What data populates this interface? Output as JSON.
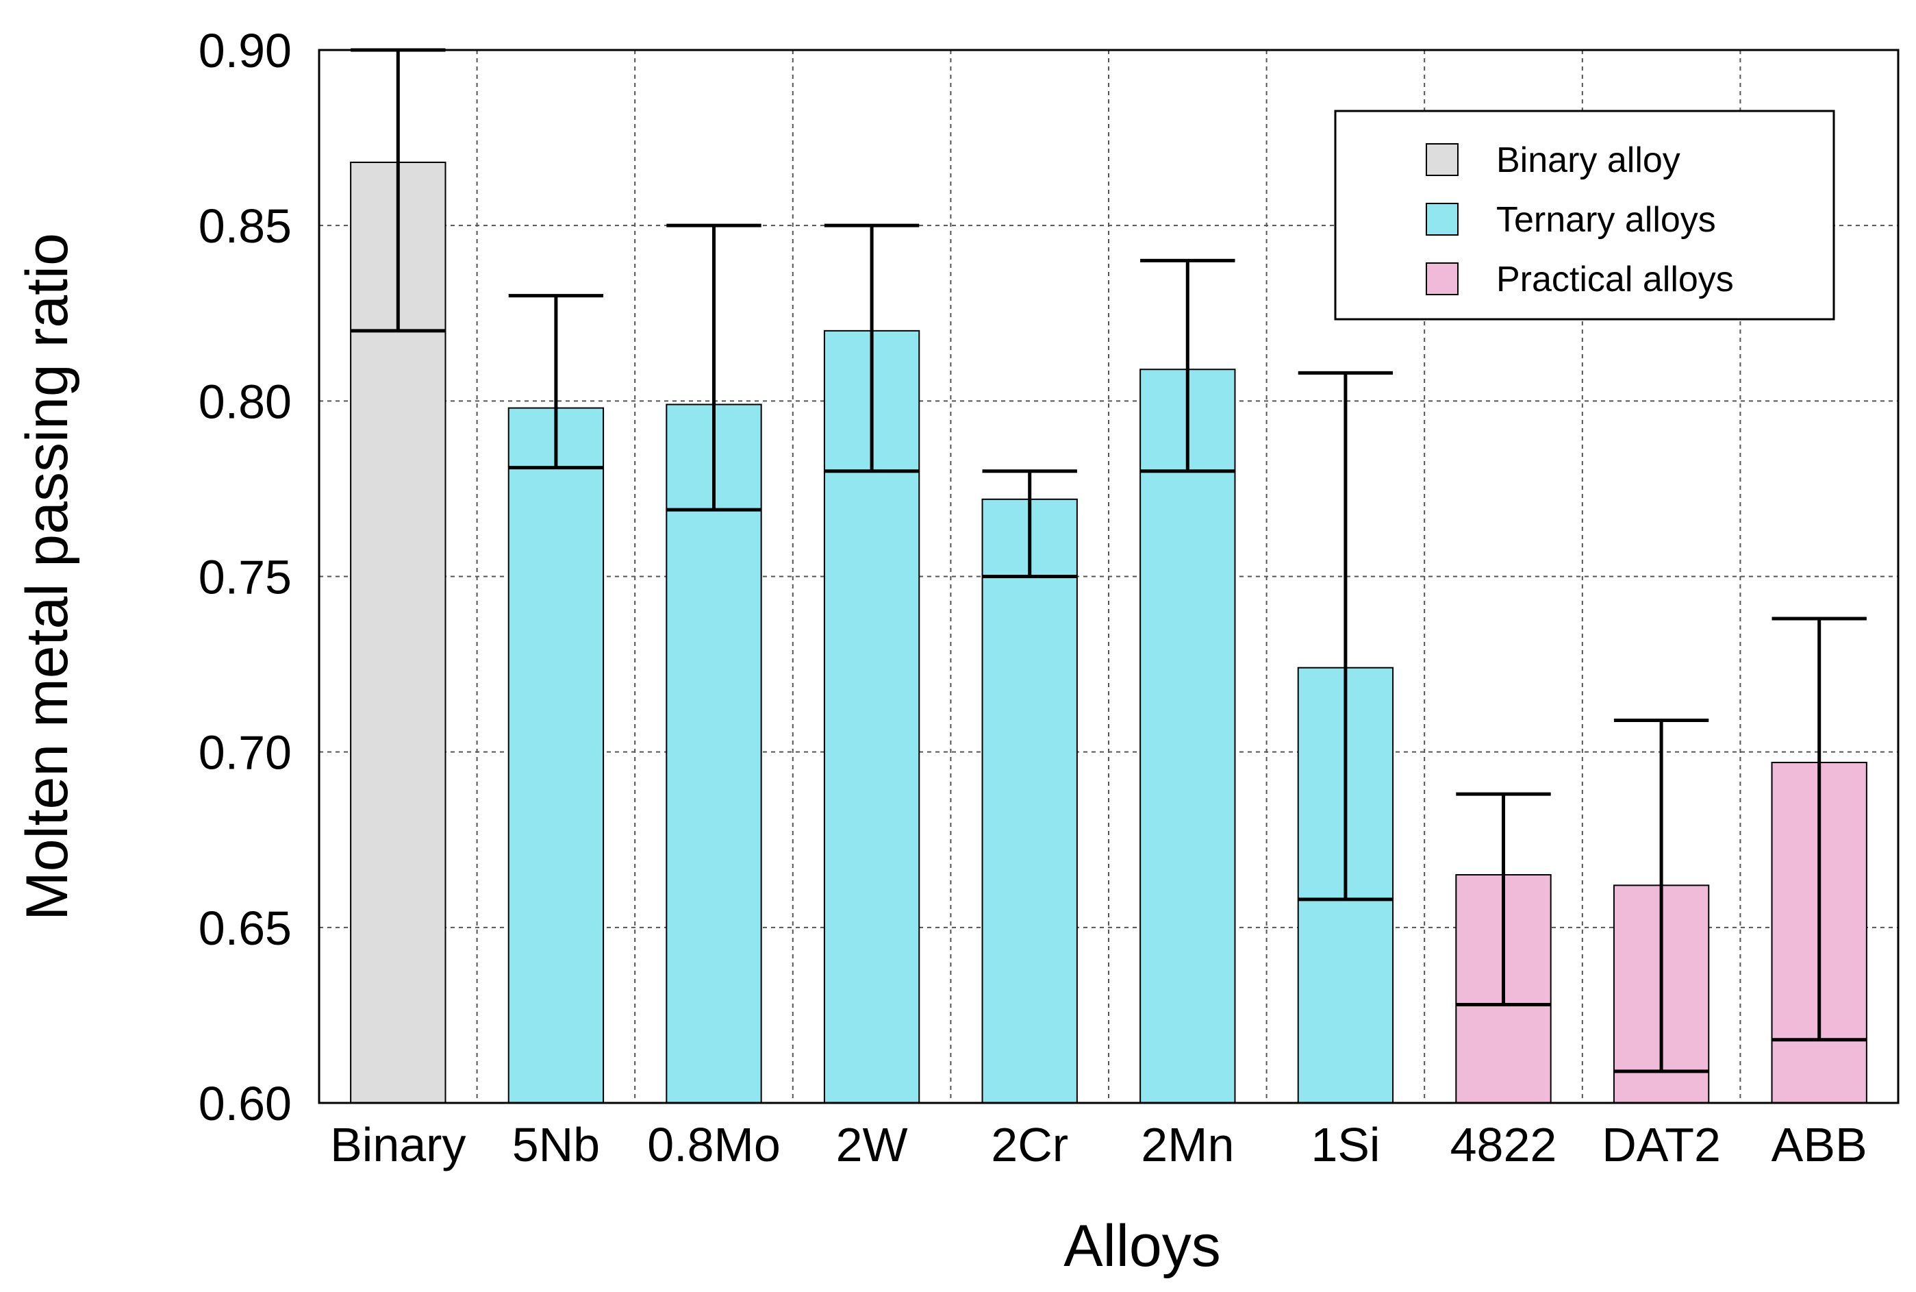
{
  "chart_data": {
    "type": "bar",
    "title": "",
    "xlabel": "Alloys",
    "ylabel": "Molten metal passing ratio",
    "ylim": [
      0.6,
      0.9
    ],
    "yticks": [
      "0.60",
      "0.65",
      "0.70",
      "0.75",
      "0.80",
      "0.85",
      "0.90"
    ],
    "grid": true,
    "legend_position": "top-right",
    "groups": [
      {
        "name": "Binary alloy",
        "color": "#dcdddc"
      },
      {
        "name": "Ternary alloys",
        "color": "#91e6ef"
      },
      {
        "name": "Practical alloys",
        "color": "#efbbd8"
      }
    ],
    "bars": [
      {
        "label": "Binary",
        "value": 0.868,
        "err_low": 0.82,
        "err_high": 0.9,
        "group": 0
      },
      {
        "label": "5Nb",
        "value": 0.798,
        "err_low": 0.781,
        "err_high": 0.83,
        "group": 1
      },
      {
        "label": "0.8Mo",
        "value": 0.799,
        "err_low": 0.769,
        "err_high": 0.85,
        "group": 1
      },
      {
        "label": "2W",
        "value": 0.82,
        "err_low": 0.78,
        "err_high": 0.85,
        "group": 1
      },
      {
        "label": "2Cr",
        "value": 0.772,
        "err_low": 0.75,
        "err_high": 0.78,
        "group": 1
      },
      {
        "label": "2Mn",
        "value": 0.809,
        "err_low": 0.78,
        "err_high": 0.84,
        "group": 1
      },
      {
        "label": "1Si",
        "value": 0.724,
        "err_low": 0.658,
        "err_high": 0.808,
        "group": 1
      },
      {
        "label": "4822",
        "value": 0.665,
        "err_low": 0.628,
        "err_high": 0.688,
        "group": 2
      },
      {
        "label": "DAT2",
        "value": 0.662,
        "err_low": 0.609,
        "err_high": 0.709,
        "group": 2
      },
      {
        "label": "ABB",
        "value": 0.697,
        "err_low": 0.618,
        "err_high": 0.738,
        "group": 2
      }
    ]
  }
}
